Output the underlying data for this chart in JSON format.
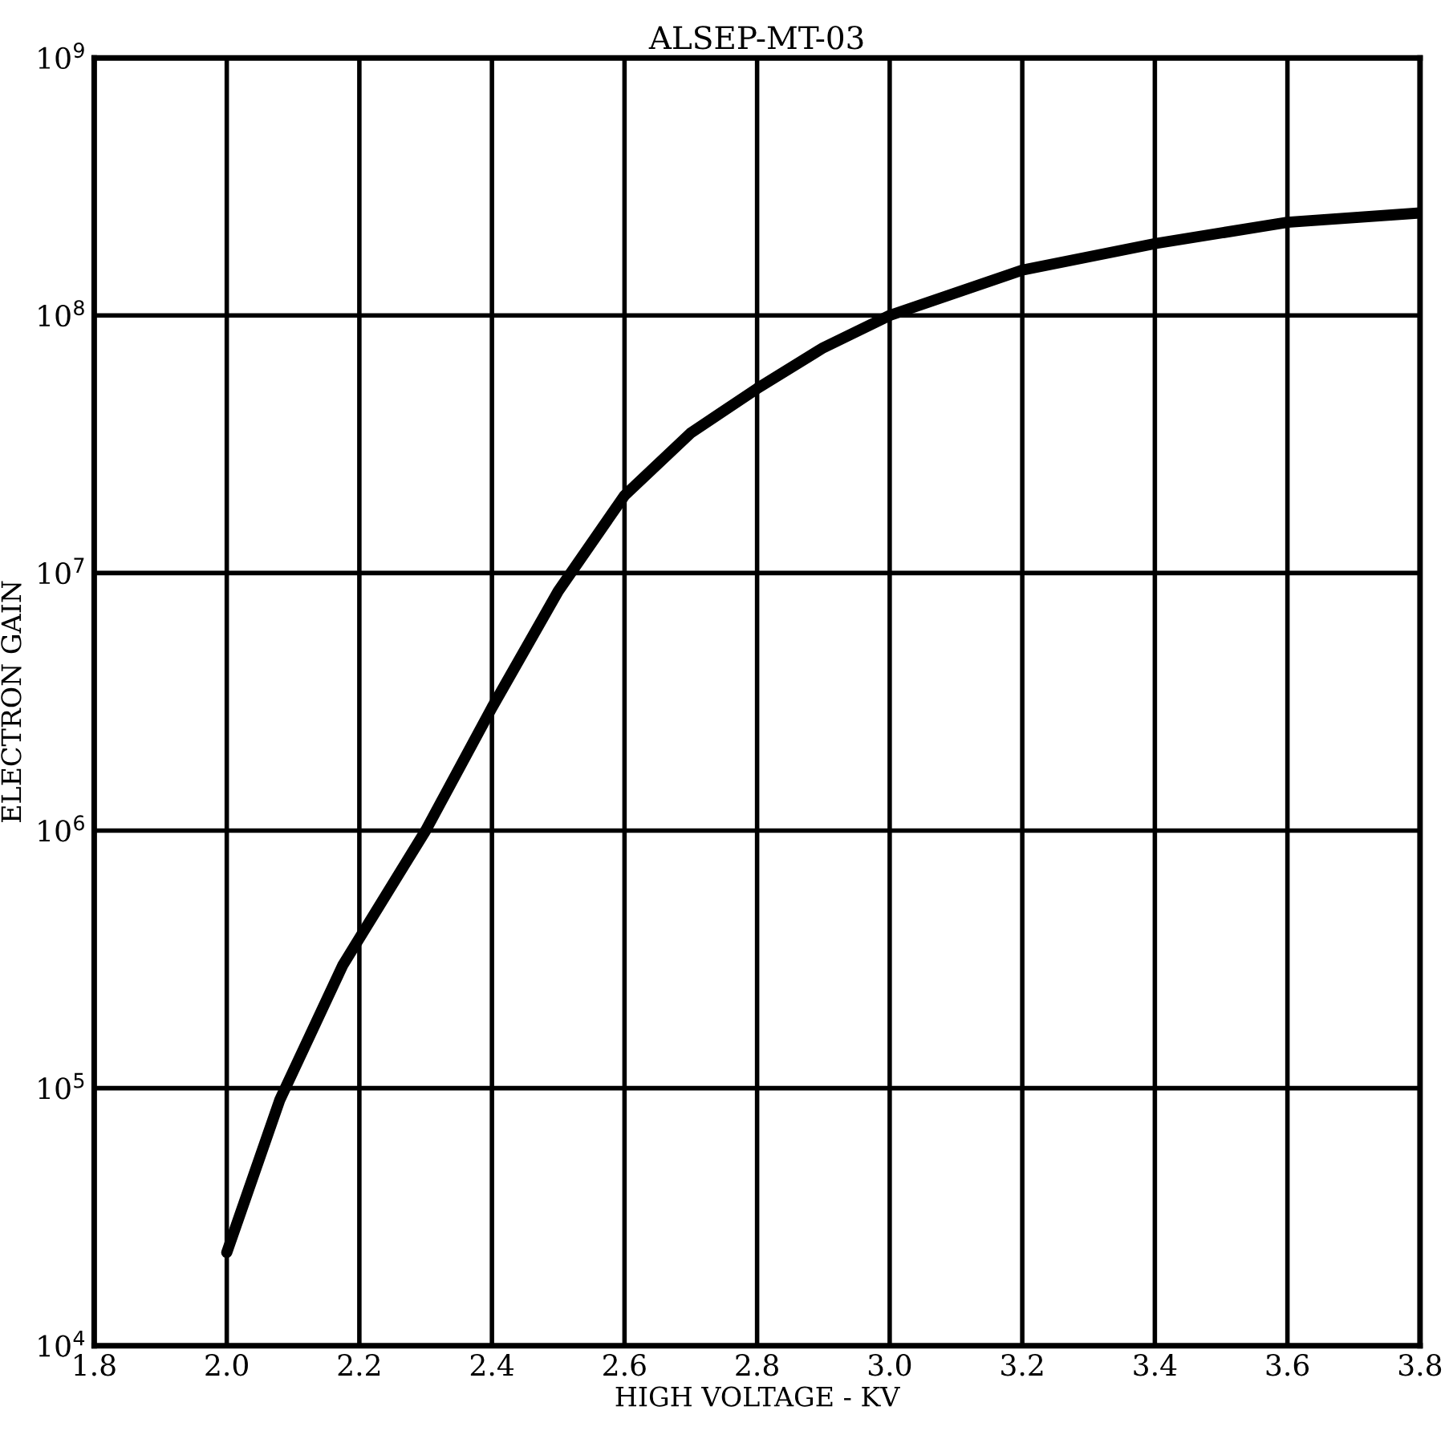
{
  "chart_data": {
    "type": "line",
    "title": "ALSEP-MT-03",
    "xlabel": "HIGH VOLTAGE - KV",
    "ylabel": "ELECTRON GAIN",
    "series": [
      {
        "color": "#000000",
        "x": [
          2.0,
          2.08,
          2.175,
          2.3,
          2.4,
          2.5,
          2.6,
          2.7,
          2.8,
          2.9,
          3.0,
          3.2,
          3.4,
          3.6,
          3.8
        ],
        "values": [
          23000.0,
          90000.0,
          300000.0,
          1000000.0,
          3000000.0,
          8500000.0,
          20000000.0,
          35000000.0,
          52000000.0,
          75000000.0,
          100000000.0,
          150000000.0,
          190000000.0,
          230000000.0,
          250000000.0
        ]
      }
    ],
    "log": "y",
    "xlim": [
      1.8,
      3.8
    ],
    "xticks": [
      1.8,
      {
        "value": 2.0,
        "label": "2.0"
      },
      2.2,
      2.4,
      2.6,
      2.8,
      {
        "value": 3.0,
        "label": "3.0"
      },
      3.2,
      3.4,
      3.6,
      3.8
    ],
    "ylim": [
      10000.0,
      1000000000.0
    ],
    "yticks": [
      {
        "value": 10000.0,
        "label": "10$^{4}$"
      },
      {
        "value": 100000.0,
        "label": "10$^{5}$"
      },
      {
        "value": 1000000.0,
        "label": "10$^{6}$"
      },
      {
        "value": 10000000.0,
        "label": "10$^{7}$"
      },
      {
        "value": 100000000.0,
        "label": "10$^{8}$"
      },
      {
        "value": 1000000000.0,
        "label": "10$^{9}$"
      }
    ],
    "grid": true,
    "marker": "none",
    "line_style": "solid"
  }
}
